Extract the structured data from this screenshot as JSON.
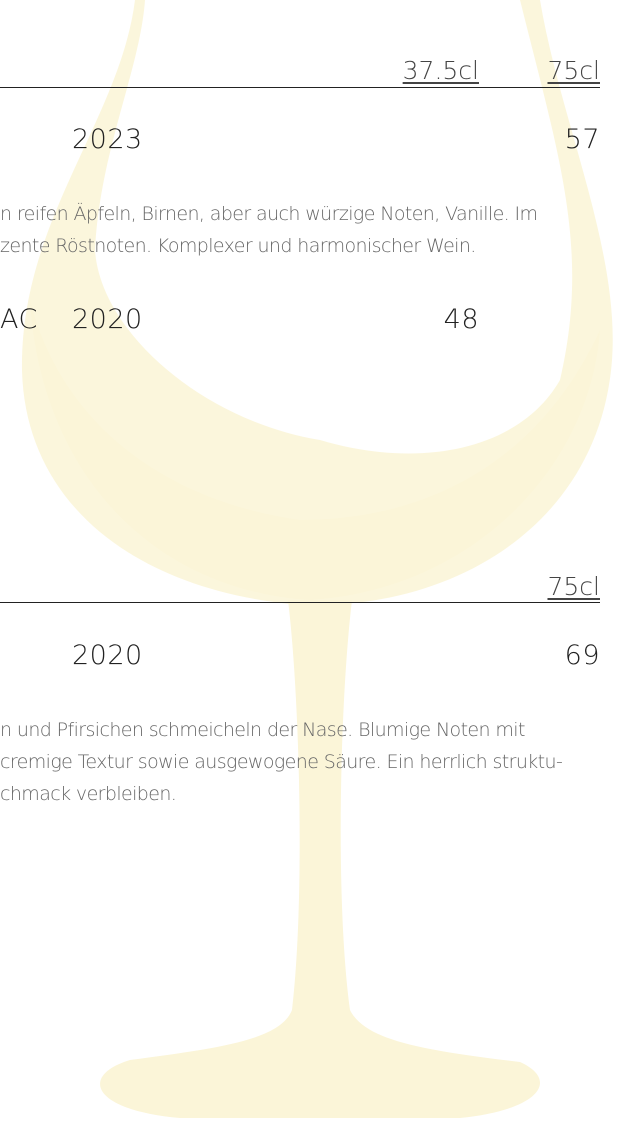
{
  "sections": [
    {
      "sizes": [
        "37.5cl",
        "75cl"
      ],
      "wines": [
        {
          "year": "2023",
          "price_75cl": "57",
          "description": [
            "n reifen Äpfeln, Birnen, aber auch würzige Noten, Vanille. Im",
            "zente Röstnoten. Komplexer und harmonischer Wein."
          ]
        },
        {
          "name": "AC",
          "year": "2020",
          "price_37_5cl": "48"
        }
      ]
    },
    {
      "sizes": [
        "75cl"
      ],
      "wines": [
        {
          "year": "2020",
          "price_75cl": "69",
          "description": [
            "n und Pfirsichen schmeicheln der Nase. Blumige Noten mit",
            "cremige Textur sowie ausgewogene Säure. Ein herrlich struktu-",
            "chmack verbleiben."
          ]
        }
      ]
    }
  ]
}
